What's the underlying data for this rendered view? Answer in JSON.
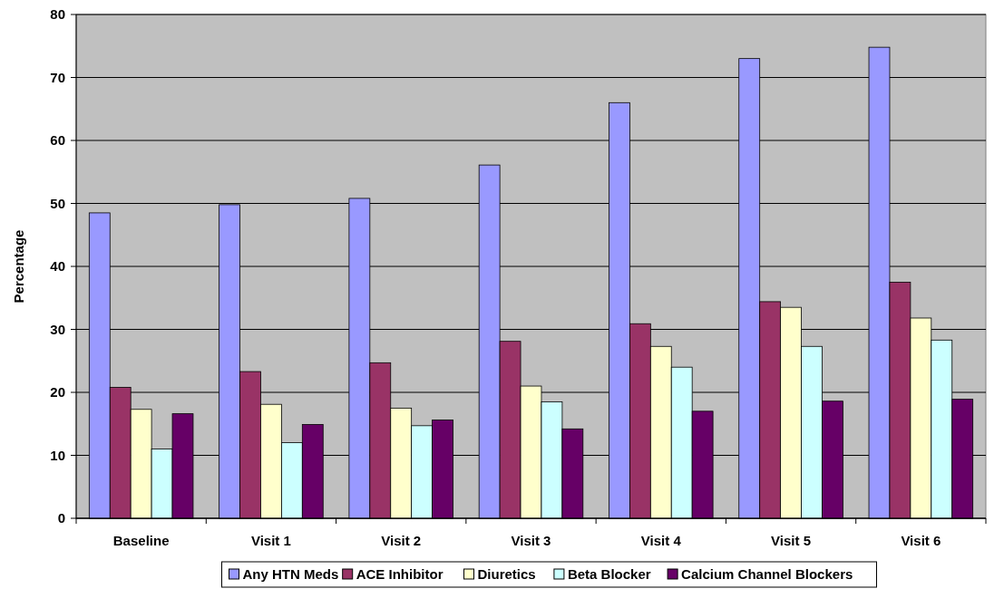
{
  "chart_data": {
    "type": "bar",
    "ylabel": "Percentage",
    "categories": [
      "Baseline",
      "Visit 1",
      "Visit 2",
      "Visit 3",
      "Visit 4",
      "Visit 5",
      "Visit 6"
    ],
    "series": [
      {
        "name": "Any HTN Meds",
        "color": "#9999ff",
        "values": [
          48.5,
          49.8,
          50.8,
          56.1,
          66,
          73,
          74.8
        ]
      },
      {
        "name": "ACE Inhibitor",
        "color": "#993366",
        "values": [
          20.8,
          23.3,
          24.7,
          28.1,
          30.9,
          34.4,
          37.5
        ]
      },
      {
        "name": "Diuretics",
        "color": "#ffffcc",
        "values": [
          17.3,
          18.1,
          17.5,
          21,
          27.3,
          33.5,
          31.8
        ]
      },
      {
        "name": "Beta Blocker",
        "color": "#ccffff",
        "values": [
          11,
          12,
          14.7,
          18.5,
          24,
          27.3,
          28.3
        ]
      },
      {
        "name": "Calcium Channel Blockers",
        "color": "#660066",
        "values": [
          16.6,
          14.9,
          15.6,
          14.2,
          17,
          18.6,
          18.9
        ]
      }
    ],
    "ylim": [
      0,
      80
    ],
    "yticks": [
      0,
      10,
      20,
      30,
      40,
      50,
      60,
      70,
      80
    ],
    "grid": "y",
    "legend": "bottom"
  }
}
